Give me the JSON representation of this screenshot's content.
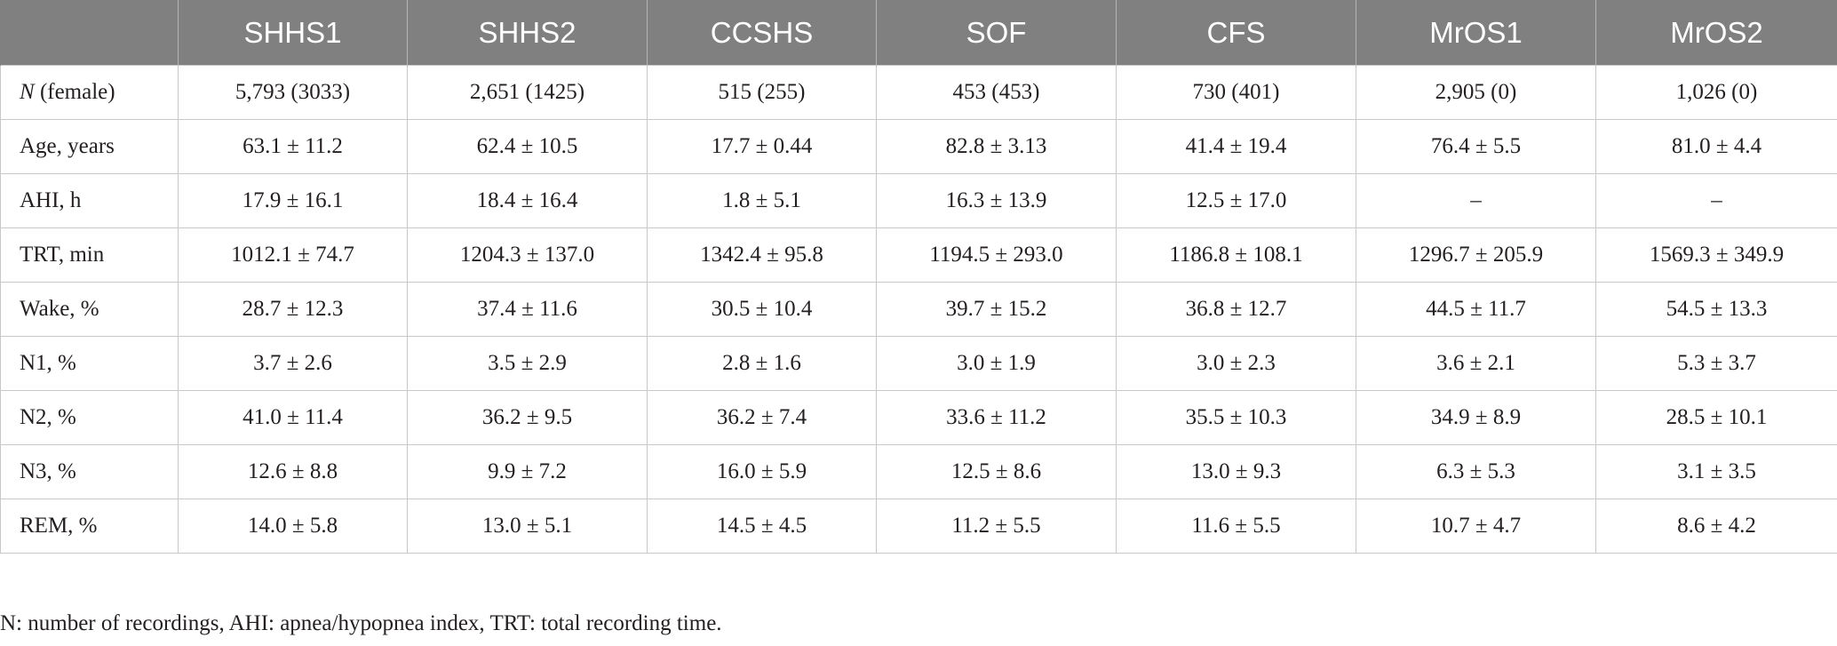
{
  "table": {
    "headers": [
      "",
      "SHHS1",
      "SHHS2",
      "CCSHS",
      "SOF",
      "CFS",
      "MrOS1",
      "MrOS2"
    ],
    "rows": [
      {
        "label_italic": "N",
        "label": " (female)",
        "cells": [
          "5,793 (3033)",
          "2,651 (1425)",
          "515 (255)",
          "453 (453)",
          "730 (401)",
          "2,905 (0)",
          "1,026 (0)"
        ]
      },
      {
        "label_italic": "",
        "label": "Age, years",
        "cells": [
          "63.1 ± 11.2",
          "62.4 ± 10.5",
          "17.7 ± 0.44",
          "82.8 ± 3.13",
          "41.4 ± 19.4",
          "76.4 ± 5.5",
          "81.0 ± 4.4"
        ]
      },
      {
        "label_italic": "",
        "label": "AHI, h",
        "cells": [
          "17.9 ± 16.1",
          "18.4 ± 16.4",
          "1.8 ± 5.1",
          "16.3 ± 13.9",
          "12.5 ± 17.0",
          "–",
          "–"
        ]
      },
      {
        "label_italic": "",
        "label": "TRT, min",
        "cells": [
          "1012.1 ± 74.7",
          "1204.3 ± 137.0",
          "1342.4 ± 95.8",
          "1194.5 ± 293.0",
          "1186.8 ± 108.1",
          "1296.7 ± 205.9",
          "1569.3 ± 349.9"
        ]
      },
      {
        "label_italic": "",
        "label": "Wake, %",
        "cells": [
          "28.7 ± 12.3",
          "37.4 ± 11.6",
          "30.5 ± 10.4",
          "39.7 ± 15.2",
          "36.8 ± 12.7",
          "44.5 ± 11.7",
          "54.5 ± 13.3"
        ]
      },
      {
        "label_italic": "",
        "label": "N1, %",
        "cells": [
          "3.7 ± 2.6",
          "3.5 ± 2.9",
          "2.8 ± 1.6",
          "3.0 ± 1.9",
          "3.0 ± 2.3",
          "3.6 ± 2.1",
          "5.3 ± 3.7"
        ]
      },
      {
        "label_italic": "",
        "label": "N2, %",
        "cells": [
          "41.0 ± 11.4",
          "36.2 ± 9.5",
          "36.2 ± 7.4",
          "33.6 ± 11.2",
          "35.5 ± 10.3",
          "34.9 ± 8.9",
          "28.5 ± 10.1"
        ]
      },
      {
        "label_italic": "",
        "label": "N3, %",
        "cells": [
          "12.6 ± 8.8",
          "9.9 ± 7.2",
          "16.0 ± 5.9",
          "12.5 ± 8.6",
          "13.0 ± 9.3",
          "6.3 ± 5.3",
          "3.1 ± 3.5"
        ]
      },
      {
        "label_italic": "",
        "label": "REM, %",
        "cells": [
          "14.0 ± 5.8",
          "13.0 ± 5.1",
          "14.5 ± 4.5",
          "11.2 ± 5.5",
          "11.6 ± 5.5",
          "10.7 ± 4.7",
          "8.6 ± 4.2"
        ]
      }
    ]
  },
  "footnote": "N: number of recordings, AHI: apnea/hypopnea index, TRT: total recording time.",
  "colors": {
    "header_background": "#808080",
    "header_text": "#ffffff",
    "grid_line": "#c8c8c8",
    "body_text": "#231f20"
  }
}
